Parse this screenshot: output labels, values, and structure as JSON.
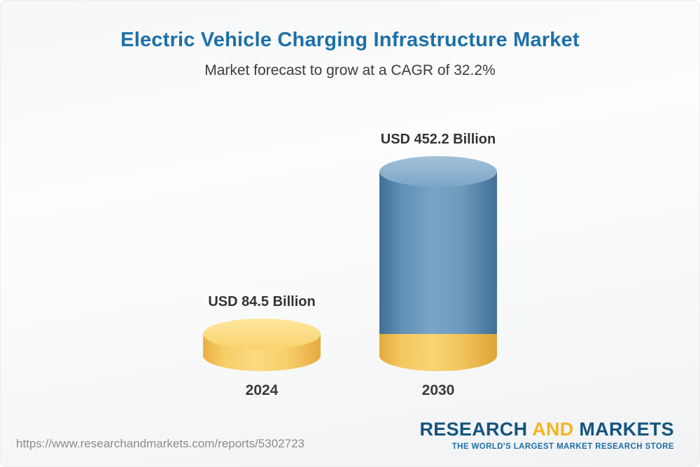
{
  "header": {
    "title": "Electric Vehicle Charging Infrastructure Market",
    "subtitle": "Market forecast to grow at a CAGR of 32.2%"
  },
  "chart_data": {
    "type": "bar",
    "categories": [
      "2024",
      "2030"
    ],
    "values": [
      84.5,
      452.2
    ],
    "value_labels": [
      "USD 84.5 Billion",
      "USD 452.2 Billion"
    ],
    "title": "Electric Vehicle Charging Infrastructure Market",
    "subtitle": "Market forecast to grow at a CAGR of 32.2%",
    "unit": "USD Billion",
    "ylim": [
      0,
      452.2
    ],
    "legend": "none",
    "grid": false,
    "colors": {
      "bar_2024": "#f8cf65",
      "bar_2030": "#6d9bbd",
      "bar_2030_base": "#f3c75f"
    }
  },
  "footer": {
    "url": "https://www.researchandmarkets.com/reports/5302723",
    "logo": {
      "part1": "RESEARCH",
      "part2": "AND",
      "part3": "MARKETS",
      "tagline": "THE WORLD'S LARGEST MARKET RESEARCH STORE"
    }
  }
}
